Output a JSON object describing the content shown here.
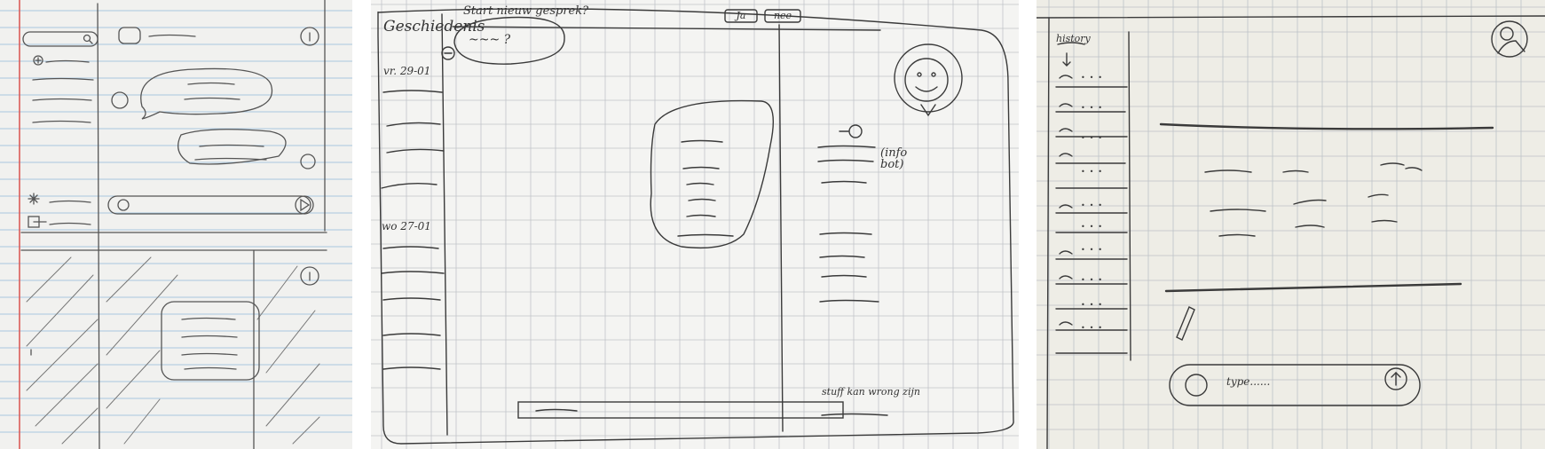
{
  "sketch2": {
    "sidebar_title": "Geschiedenis",
    "date_1": "vr. 29-01",
    "date_2": "wo 27-01",
    "banner_text": "Start nieuw gesprek?",
    "yes_label": "Ja",
    "no_label": "nee",
    "bot_question": "~~~ ?",
    "info_label": "(info bot)",
    "footer_note": "stuff kan wrong zijn"
  },
  "sketch3": {
    "history_label": "history",
    "input_placeholder": "type......"
  },
  "colors": {
    "paper": "#f5f4ef",
    "pencil": "#3a3a3a",
    "grid": "#b9bcc3",
    "margin": "#d9534f"
  }
}
